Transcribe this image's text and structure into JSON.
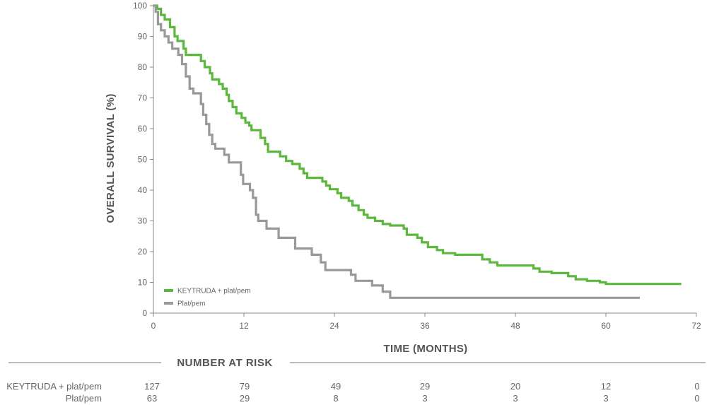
{
  "chart_data": {
    "type": "line",
    "title": "",
    "xlabel": "TIME (MONTHS)",
    "ylabel": "OVERALL SURVIVAL (%)",
    "xlim": [
      0,
      72
    ],
    "ylim": [
      0,
      100
    ],
    "x_ticks": [
      "0",
      "12",
      "24",
      "36",
      "48",
      "60",
      "72"
    ],
    "y_ticks": [
      "0",
      "10",
      "20",
      "30",
      "40",
      "50",
      "60",
      "70",
      "80",
      "90",
      "100"
    ],
    "grid": false,
    "legend_position": "bottom-left",
    "series": [
      {
        "name": "KEYTRUDA + plat/pem",
        "color": "#5cb83c",
        "points": [
          [
            0,
            100
          ],
          [
            0.5,
            99
          ],
          [
            1,
            97
          ],
          [
            1.5,
            95.5
          ],
          [
            2.2,
            93
          ],
          [
            2.8,
            90
          ],
          [
            3.2,
            88.5
          ],
          [
            4,
            86
          ],
          [
            4.3,
            84
          ],
          [
            6.3,
            82
          ],
          [
            6.8,
            80
          ],
          [
            7.5,
            78
          ],
          [
            7.8,
            76
          ],
          [
            8.7,
            74.5
          ],
          [
            9.2,
            73
          ],
          [
            9.7,
            71
          ],
          [
            10,
            69
          ],
          [
            10.5,
            67
          ],
          [
            11,
            65
          ],
          [
            11.7,
            63.5
          ],
          [
            12.2,
            62
          ],
          [
            12.7,
            61
          ],
          [
            13,
            59.5
          ],
          [
            14.2,
            57
          ],
          [
            14.8,
            55
          ],
          [
            15.2,
            52.5
          ],
          [
            16.8,
            51
          ],
          [
            17.6,
            49.5
          ],
          [
            18.4,
            48.5
          ],
          [
            19.4,
            47
          ],
          [
            19.9,
            45.5
          ],
          [
            20.4,
            44
          ],
          [
            22.4,
            42.8
          ],
          [
            22.9,
            41.5
          ],
          [
            23.4,
            40.3
          ],
          [
            24.4,
            39
          ],
          [
            24.9,
            37.5
          ],
          [
            25.9,
            36.5
          ],
          [
            26.4,
            35
          ],
          [
            27.2,
            33.5
          ],
          [
            27.9,
            32
          ],
          [
            28.4,
            31
          ],
          [
            29.4,
            30
          ],
          [
            30.4,
            29
          ],
          [
            31.4,
            28.5
          ],
          [
            33.2,
            27.5
          ],
          [
            33.6,
            25.5
          ],
          [
            35,
            24.5
          ],
          [
            35.6,
            23
          ],
          [
            36.4,
            21.5
          ],
          [
            37.6,
            20.5
          ],
          [
            38.4,
            19.5
          ],
          [
            40,
            19
          ],
          [
            43.6,
            17.5
          ],
          [
            44.6,
            16.5
          ],
          [
            45.6,
            15.5
          ],
          [
            50.4,
            14.5
          ],
          [
            51.2,
            13.5
          ],
          [
            52.8,
            13
          ],
          [
            55,
            12
          ],
          [
            56,
            11
          ],
          [
            57.5,
            10.5
          ],
          [
            59.2,
            10
          ],
          [
            60,
            9.5
          ],
          [
            70,
            9.5
          ]
        ]
      },
      {
        "name": "Plat/pem",
        "color": "#999999",
        "points": [
          [
            0,
            100
          ],
          [
            0.3,
            98
          ],
          [
            0.6,
            94
          ],
          [
            1,
            92
          ],
          [
            1.5,
            90
          ],
          [
            2,
            88
          ],
          [
            2.5,
            86
          ],
          [
            3.3,
            84
          ],
          [
            3.8,
            81
          ],
          [
            4.3,
            77
          ],
          [
            4.8,
            73
          ],
          [
            5.3,
            71.5
          ],
          [
            6.3,
            68
          ],
          [
            6.6,
            64.5
          ],
          [
            7,
            61.5
          ],
          [
            7.4,
            58
          ],
          [
            7.8,
            55
          ],
          [
            8.2,
            53.5
          ],
          [
            9.4,
            51.5
          ],
          [
            10,
            49
          ],
          [
            11.6,
            45
          ],
          [
            11.9,
            42
          ],
          [
            12.8,
            40
          ],
          [
            13.2,
            37.5
          ],
          [
            13.6,
            32
          ],
          [
            13.9,
            30
          ],
          [
            15,
            27.5
          ],
          [
            16.6,
            24.5
          ],
          [
            18.8,
            21
          ],
          [
            21,
            19
          ],
          [
            22.2,
            16.5
          ],
          [
            22.8,
            14
          ],
          [
            26.2,
            12.5
          ],
          [
            26.8,
            10.5
          ],
          [
            29,
            9
          ],
          [
            30.4,
            7
          ],
          [
            31.4,
            5
          ],
          [
            64.5,
            5
          ]
        ]
      }
    ],
    "number_at_risk": {
      "heading": "NUMBER AT RISK",
      "times": [
        0,
        12,
        24,
        36,
        48,
        60,
        72
      ],
      "rows": [
        {
          "label": "KEYTRUDA + plat/pem",
          "color": "#5cb83c",
          "values": [
            "127",
            "79",
            "49",
            "29",
            "20",
            "12",
            "0"
          ]
        },
        {
          "label": "Plat/pem",
          "color": "#999999",
          "values": [
            "63",
            "29",
            "8",
            "3",
            "3",
            "3",
            "0"
          ]
        }
      ]
    }
  }
}
